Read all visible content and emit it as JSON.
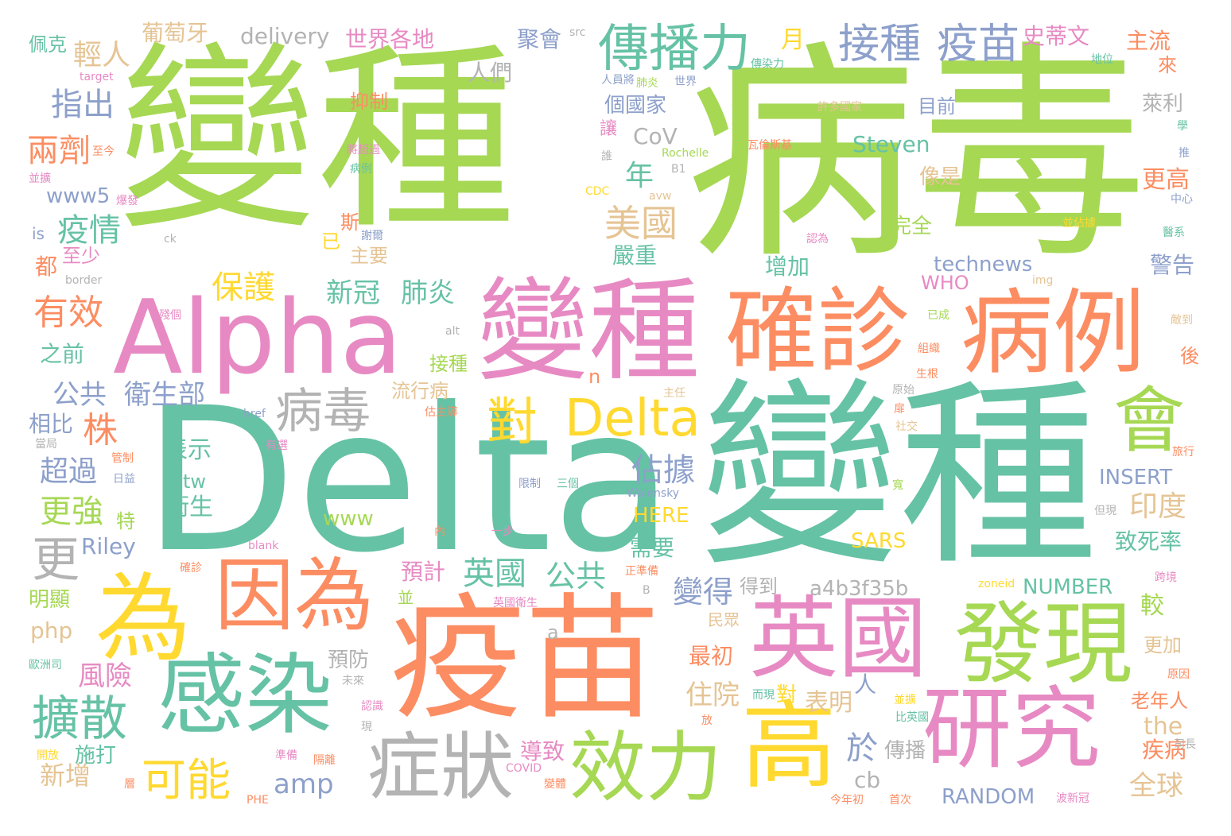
{
  "words": [
    {
      "text": "變種",
      "color": "#a6d854"
    },
    {
      "text": "病毒",
      "color": "#a6d854"
    },
    {
      "text": "Delta",
      "color": "#66c2a5"
    },
    {
      "text": "變種",
      "color": "#66c2a5"
    },
    {
      "text": "Alpha",
      "color": "#e78ac3"
    },
    {
      "text": "變種",
      "color": "#e78ac3"
    },
    {
      "text": "確診",
      "color": "#fc8d62"
    },
    {
      "text": "病例",
      "color": "#fc8d62"
    },
    {
      "text": "疫苗",
      "color": "#fc8d62"
    },
    {
      "text": "因為",
      "color": "#fc8d62"
    },
    {
      "text": "為",
      "color": "#ffd92f"
    },
    {
      "text": "感染",
      "color": "#66c2a5"
    },
    {
      "text": "英國",
      "color": "#e78ac3"
    },
    {
      "text": "發現",
      "color": "#a6d854"
    },
    {
      "text": "研究",
      "color": "#e78ac3"
    },
    {
      "text": "高",
      "color": "#ffd92f"
    },
    {
      "text": "效力",
      "color": "#a6d854"
    },
    {
      "text": "症狀",
      "color": "#b3b3b3"
    },
    {
      "text": "會",
      "color": "#a6d854"
    },
    {
      "text": "傳播力",
      "color": "#66c2a5"
    },
    {
      "text": "接種",
      "color": "#8da0cb"
    },
    {
      "text": "疫苗",
      "color": "#8da0cb"
    },
    {
      "text": "病毒",
      "color": "#b3b3b3"
    },
    {
      "text": "Delta",
      "color": "#ffd92f"
    },
    {
      "text": "對",
      "color": "#ffd92f"
    },
    {
      "text": "擴散",
      "color": "#66c2a5"
    },
    {
      "text": "可能",
      "color": "#ffd92f"
    },
    {
      "text": "更",
      "color": "#b3b3b3"
    },
    {
      "text": "美國",
      "color": "#e5c494"
    },
    {
      "text": "Steven",
      "color": "#66c2a5"
    },
    {
      "text": "delivery",
      "color": "#b3b3b3"
    },
    {
      "text": "世界各地",
      "color": "#e78ac3"
    },
    {
      "text": "聚會",
      "color": "#8da0cb"
    },
    {
      "text": "史蒂文",
      "color": "#e78ac3"
    },
    {
      "text": "主流",
      "color": "#fc8d62"
    },
    {
      "text": "葡萄牙",
      "color": "#e5c494"
    },
    {
      "text": "佩克",
      "color": "#66c2a5"
    },
    {
      "text": "輕人",
      "color": "#e5c494"
    },
    {
      "text": "人們",
      "color": "#b3b3b3"
    },
    {
      "text": "月",
      "color": "#ffd92f"
    },
    {
      "text": "指出",
      "color": "#8da0cb"
    },
    {
      "text": "兩劑",
      "color": "#fc8d62"
    },
    {
      "text": "疫情",
      "color": "#66c2a5"
    },
    {
      "text": "有效",
      "color": "#fc8d62"
    },
    {
      "text": "保護",
      "color": "#ffd92f"
    },
    {
      "text": "新冠",
      "color": "#66c2a5"
    },
    {
      "text": "肺炎",
      "color": "#66c2a5"
    },
    {
      "text": "公共",
      "color": "#8da0cb"
    },
    {
      "text": "衛生部",
      "color": "#8da0cb"
    },
    {
      "text": "株",
      "color": "#fc8d62"
    },
    {
      "text": "超過",
      "color": "#8da0cb"
    },
    {
      "text": "更強",
      "color": "#a6d854"
    },
    {
      "text": "相比",
      "color": "#8da0cb"
    },
    {
      "text": "之前",
      "color": "#66c2a5"
    },
    {
      "text": "英國",
      "color": "#66c2a5"
    },
    {
      "text": "公共",
      "color": "#66c2a5"
    },
    {
      "text": "變得",
      "color": "#8da0cb"
    },
    {
      "text": "佔據",
      "color": "#8da0cb"
    },
    {
      "text": "a4b3f35b",
      "color": "#b3b3b3"
    },
    {
      "text": "NUMBER",
      "color": "#66c2a5"
    },
    {
      "text": "INSERT",
      "color": "#8da0cb"
    },
    {
      "text": "印度",
      "color": "#e5c494"
    },
    {
      "text": "致死率",
      "color": "#66c2a5"
    },
    {
      "text": "technews",
      "color": "#8da0cb"
    },
    {
      "text": "WHO",
      "color": "#e78ac3"
    },
    {
      "text": "SARS",
      "color": "#ffd92f"
    },
    {
      "text": "HERE",
      "color": "#ffd92f"
    },
    {
      "text": "RANDOM",
      "color": "#8da0cb"
    },
    {
      "text": "amp",
      "color": "#8da0cb"
    },
    {
      "text": "www",
      "color": "#a6d854"
    },
    {
      "text": "www5",
      "color": "#8da0cb"
    },
    {
      "text": "php",
      "color": "#e5c494"
    },
    {
      "text": "Riley",
      "color": "#8da0cb"
    },
    {
      "text": "CoV",
      "color": "#b3b3b3"
    },
    {
      "text": "the",
      "color": "#e5c494"
    },
    {
      "text": "cb",
      "color": "#b3b3b3"
    },
    {
      "text": "tw",
      "color": "#66c2a5"
    },
    {
      "text": "is",
      "color": "#8da0cb"
    },
    {
      "text": "a",
      "color": "#b3b3b3"
    },
    {
      "text": "n",
      "color": "#fc8d62"
    },
    {
      "text": "全球",
      "color": "#e5c494"
    },
    {
      "text": "疾病",
      "color": "#fc8d62"
    },
    {
      "text": "老年人",
      "color": "#fc8d62"
    },
    {
      "text": "傳播",
      "color": "#b3b3b3"
    },
    {
      "text": "於",
      "color": "#8da0cb"
    },
    {
      "text": "人",
      "color": "#8da0cb"
    },
    {
      "text": "表明",
      "color": "#e5c494"
    },
    {
      "text": "住院",
      "color": "#e5c494"
    },
    {
      "text": "最初",
      "color": "#fc8d62"
    },
    {
      "text": "預計",
      "color": "#e78ac3"
    },
    {
      "text": "需要",
      "color": "#66c2a5"
    },
    {
      "text": "導致",
      "color": "#e78ac3"
    },
    {
      "text": "預防",
      "color": "#b3b3b3"
    },
    {
      "text": "新增",
      "color": "#e5c494"
    },
    {
      "text": "施打",
      "color": "#66c2a5"
    },
    {
      "text": "風險",
      "color": "#e78ac3"
    },
    {
      "text": "明顯",
      "color": "#a6d854"
    },
    {
      "text": "年",
      "color": "#66c2a5"
    },
    {
      "text": "嚴重",
      "color": "#66c2a5"
    },
    {
      "text": "增加",
      "color": "#66c2a5"
    },
    {
      "text": "完全",
      "color": "#a6d854"
    },
    {
      "text": "像是",
      "color": "#e5c494"
    },
    {
      "text": "更高",
      "color": "#fc8d62"
    },
    {
      "text": "目前",
      "color": "#8da0cb"
    },
    {
      "text": "萊利",
      "color": "#b3b3b3"
    },
    {
      "text": "警告",
      "color": "#8da0cb"
    },
    {
      "text": "個國家",
      "color": "#8da0cb"
    },
    {
      "text": "抑制",
      "color": "#fc8d62"
    },
    {
      "text": "接種",
      "color": "#a6d854"
    },
    {
      "text": "流行病",
      "color": "#e5c494"
    },
    {
      "text": "主要",
      "color": "#e5c494"
    },
    {
      "text": "表示",
      "color": "#66c2a5"
    },
    {
      "text": "衛生",
      "color": "#66c2a5"
    },
    {
      "text": "至少",
      "color": "#e78ac3"
    },
    {
      "text": "都",
      "color": "#fc8d62"
    },
    {
      "text": "較",
      "color": "#a6d854"
    },
    {
      "text": "得到",
      "color": "#b3b3b3"
    },
    {
      "text": "更加",
      "color": "#e5c494"
    },
    {
      "text": "來",
      "color": "#fc8d62"
    },
    {
      "text": "後",
      "color": "#fc8d62"
    },
    {
      "text": "斯",
      "color": "#fc8d62"
    },
    {
      "text": "已",
      "color": "#ffd92f"
    },
    {
      "text": "特",
      "color": "#a6d854"
    },
    {
      "text": "讓",
      "color": "#e78ac3"
    },
    {
      "text": "民眾",
      "color": "#e5c494"
    },
    {
      "text": "並",
      "color": "#a6d854"
    },
    {
      "text": "對",
      "color": "#ffd92f"
    },
    {
      "text": "src",
      "color": "#b3b3b3"
    },
    {
      "text": "傳染力",
      "color": "#66c2a5"
    },
    {
      "text": "人員將",
      "color": "#8da0cb"
    },
    {
      "text": "肺炎",
      "color": "#a6d854"
    },
    {
      "text": "世界",
      "color": "#8da0cb"
    },
    {
      "text": "地位",
      "color": "#66c2a5"
    },
    {
      "text": "target",
      "color": "#e78ac3"
    },
    {
      "text": "許多國家",
      "color": "#e5c494"
    },
    {
      "text": "學",
      "color": "#66c2a5"
    },
    {
      "text": "至今",
      "color": "#fc8d62"
    },
    {
      "text": "將超過",
      "color": "#e78ac3"
    },
    {
      "text": "瓦倫斯基",
      "color": "#fc8d62"
    },
    {
      "text": "Rochelle",
      "color": "#a6d854"
    },
    {
      "text": "病例",
      "color": "#66c2a5"
    },
    {
      "text": "B1",
      "color": "#b3b3b3"
    },
    {
      "text": "推",
      "color": "#8da0cb"
    },
    {
      "text": "並擴",
      "color": "#e78ac3"
    },
    {
      "text": "誰",
      "color": "#b3b3b3"
    },
    {
      "text": "CDC",
      "color": "#ffd92f"
    },
    {
      "text": "avw",
      "color": "#e5c494"
    },
    {
      "text": "中心",
      "color": "#8da0cb"
    },
    {
      "text": "爆發",
      "color": "#e78ac3"
    },
    {
      "text": "並佔據",
      "color": "#ffd92f"
    },
    {
      "text": "ck",
      "color": "#b3b3b3"
    },
    {
      "text": "謝爾",
      "color": "#8da0cb"
    },
    {
      "text": "認為",
      "color": "#e78ac3"
    },
    {
      "text": "醫系",
      "color": "#66c2a5"
    },
    {
      "text": "border",
      "color": "#b3b3b3"
    },
    {
      "text": "img",
      "color": "#e5c494"
    },
    {
      "text": "殘個",
      "color": "#e78ac3"
    },
    {
      "text": "alt",
      "color": "#b3b3b3"
    },
    {
      "text": "已成",
      "color": "#a6d854"
    },
    {
      "text": "敵到",
      "color": "#e5c494"
    },
    {
      "text": "組織",
      "color": "#fc8d62"
    },
    {
      "text": "生根",
      "color": "#fc8d62"
    },
    {
      "text": "主任",
      "color": "#e5c494"
    },
    {
      "text": "原始",
      "color": "#b3b3b3"
    },
    {
      "text": "估主導",
      "color": "#fc8d62"
    },
    {
      "text": "href",
      "color": "#8da0cb"
    },
    {
      "text": "扉",
      "color": "#fc8d62"
    },
    {
      "text": "社交",
      "color": "#e5c494"
    },
    {
      "text": "當局",
      "color": "#b3b3b3"
    },
    {
      "text": "有選",
      "color": "#e78ac3"
    },
    {
      "text": "旅行",
      "color": "#fc8d62"
    },
    {
      "text": "管制",
      "color": "#fc8d62"
    },
    {
      "text": "日益",
      "color": "#8da0cb"
    },
    {
      "text": "限制",
      "color": "#8da0cb"
    },
    {
      "text": "三個",
      "color": "#66c2a5"
    },
    {
      "text": "寬",
      "color": "#a6d854"
    },
    {
      "text": "Walensky",
      "color": "#8da0cb"
    },
    {
      "text": "一步",
      "color": "#e78ac3"
    },
    {
      "text": "但現",
      "color": "#b3b3b3"
    },
    {
      "text": "blank",
      "color": "#e78ac3"
    },
    {
      "text": "內",
      "color": "#fc8d62"
    },
    {
      "text": "確診",
      "color": "#fc8d62"
    },
    {
      "text": "正準備",
      "color": "#fc8d62"
    },
    {
      "text": "B",
      "color": "#b3b3b3"
    },
    {
      "text": "zoneid",
      "color": "#ffd92f"
    },
    {
      "text": "跨境",
      "color": "#e78ac3"
    },
    {
      "text": "英國衛生",
      "color": "#e78ac3"
    },
    {
      "text": "歐洲司",
      "color": "#66c2a5"
    },
    {
      "text": "未來",
      "color": "#b3b3b3"
    },
    {
      "text": "而現",
      "color": "#66c2a5"
    },
    {
      "text": "原因",
      "color": "#fc8d62"
    },
    {
      "text": "認識",
      "color": "#e78ac3"
    },
    {
      "text": "並擴",
      "color": "#ffd92f"
    },
    {
      "text": "比英國",
      "color": "#66c2a5"
    },
    {
      "text": "現",
      "color": "#b3b3b3"
    },
    {
      "text": "放",
      "color": "#fc8d62"
    },
    {
      "text": "開放",
      "color": "#ffd92f"
    },
    {
      "text": "準備",
      "color": "#e78ac3"
    },
    {
      "text": "隔離",
      "color": "#fc8d62"
    },
    {
      "text": "COVID",
      "color": "#e78ac3"
    },
    {
      "text": "變體",
      "color": "#fc8d62"
    },
    {
      "text": "司長",
      "color": "#b3b3b3"
    },
    {
      "text": "層",
      "color": "#fc8d62"
    },
    {
      "text": "PHE",
      "color": "#fc8d62"
    },
    {
      "text": "今年初",
      "color": "#fc8d62"
    },
    {
      "text": "首次",
      "color": "#fc8d62"
    },
    {
      "text": "波新冠",
      "color": "#e78ac3"
    }
  ]
}
